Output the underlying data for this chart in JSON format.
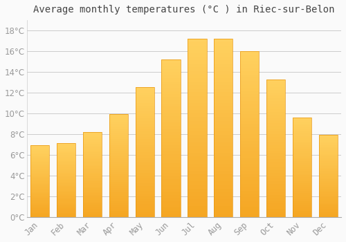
{
  "title": "Average monthly temperatures (°C ) in Riec-sur-Belon",
  "months": [
    "Jan",
    "Feb",
    "Mar",
    "Apr",
    "May",
    "Jun",
    "Jul",
    "Aug",
    "Sep",
    "Oct",
    "Nov",
    "Dec"
  ],
  "values": [
    6.9,
    7.1,
    8.2,
    9.9,
    12.5,
    15.2,
    17.2,
    17.2,
    16.0,
    13.3,
    9.6,
    7.9
  ],
  "bar_color_bottom": "#F5A623",
  "bar_color_top": "#FFD060",
  "bar_edge_color": "#E8960F",
  "ylim": [
    0,
    19
  ],
  "yticks": [
    0,
    2,
    4,
    6,
    8,
    10,
    12,
    14,
    16,
    18
  ],
  "background_color": "#FAFAFA",
  "grid_color": "#CCCCCC",
  "title_fontsize": 10,
  "tick_fontsize": 8.5,
  "tick_font_color": "#999999",
  "figsize": [
    5.0,
    3.5
  ],
  "dpi": 100,
  "bar_width": 0.72
}
